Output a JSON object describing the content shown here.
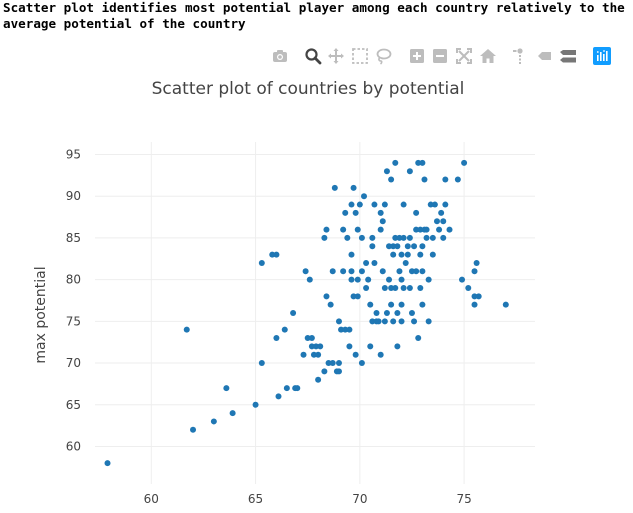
{
  "caption": "Scatter plot identifies most potential player among each country relatively to the average potential of the country",
  "modebar": {
    "buttons": [
      {
        "name": "camera-icon"
      },
      {
        "name": "zoom-icon"
      },
      {
        "name": "pan-icon"
      },
      {
        "name": "box-select-icon"
      },
      {
        "name": "lasso-icon"
      },
      {
        "name": "zoom-in-icon"
      },
      {
        "name": "zoom-out-icon"
      },
      {
        "name": "autoscale-icon"
      },
      {
        "name": "reset-axes-icon"
      },
      {
        "name": "spike-lines-icon"
      },
      {
        "name": "hover-closest-icon"
      },
      {
        "name": "hover-compare-icon"
      },
      {
        "name": "plotly-logo-icon"
      }
    ],
    "active": "zoom-icon",
    "icon_color": "#bdbdbd",
    "active_color": "#444444",
    "logo_color": "#119dff"
  },
  "chart_data": {
    "type": "scatter",
    "title": "Scatter plot of countries by potential",
    "xlabel": "",
    "ylabel": "max potential",
    "xlim": [
      57.3,
      78.4
    ],
    "ylim": [
      55.5,
      96.5
    ],
    "xticks": [
      "60",
      "65",
      "70",
      "75"
    ],
    "yticks": [
      "60",
      "65",
      "70",
      "75",
      "80",
      "85",
      "90",
      "95"
    ],
    "grid": true,
    "marker_color": "#1f77b4",
    "points": [
      [
        57.9,
        58
      ],
      [
        61.7,
        74
      ],
      [
        62.0,
        62
      ],
      [
        63.0,
        63
      ],
      [
        63.6,
        67
      ],
      [
        63.9,
        64
      ],
      [
        65.0,
        65
      ],
      [
        65.3,
        70
      ],
      [
        65.3,
        82
      ],
      [
        65.8,
        83
      ],
      [
        66.0,
        83
      ],
      [
        66.0,
        73
      ],
      [
        66.1,
        66
      ],
      [
        66.4,
        74
      ],
      [
        66.5,
        67
      ],
      [
        66.8,
        76
      ],
      [
        66.9,
        67
      ],
      [
        67.0,
        67
      ],
      [
        67.3,
        71
      ],
      [
        67.4,
        81
      ],
      [
        67.5,
        73
      ],
      [
        67.6,
        80
      ],
      [
        67.7,
        73
      ],
      [
        67.7,
        72
      ],
      [
        67.8,
        71
      ],
      [
        67.9,
        72
      ],
      [
        68.0,
        71
      ],
      [
        68.0,
        68
      ],
      [
        68.1,
        72
      ],
      [
        68.3,
        69
      ],
      [
        68.3,
        85
      ],
      [
        68.4,
        86
      ],
      [
        68.4,
        78
      ],
      [
        68.5,
        70
      ],
      [
        68.6,
        77
      ],
      [
        68.7,
        81
      ],
      [
        68.7,
        70
      ],
      [
        68.8,
        91
      ],
      [
        68.9,
        69
      ],
      [
        69.0,
        75
      ],
      [
        69.0,
        70
      ],
      [
        69.0,
        69
      ],
      [
        69.1,
        74
      ],
      [
        69.2,
        86
      ],
      [
        69.2,
        81
      ],
      [
        69.3,
        88
      ],
      [
        69.3,
        74
      ],
      [
        69.4,
        85
      ],
      [
        69.5,
        72
      ],
      [
        69.5,
        74
      ],
      [
        69.6,
        89
      ],
      [
        69.6,
        83
      ],
      [
        69.6,
        80
      ],
      [
        69.6,
        81
      ],
      [
        69.7,
        91
      ],
      [
        69.7,
        78
      ],
      [
        69.8,
        71
      ],
      [
        69.8,
        88
      ],
      [
        69.9,
        86
      ],
      [
        69.9,
        78
      ],
      [
        69.9,
        80
      ],
      [
        70.0,
        89
      ],
      [
        70.1,
        85
      ],
      [
        70.1,
        81
      ],
      [
        70.1,
        70
      ],
      [
        70.2,
        90
      ],
      [
        70.3,
        79
      ],
      [
        70.3,
        82
      ],
      [
        70.4,
        80
      ],
      [
        70.5,
        72
      ],
      [
        70.5,
        77
      ],
      [
        70.6,
        85
      ],
      [
        70.6,
        75
      ],
      [
        70.6,
        84
      ],
      [
        70.7,
        82
      ],
      [
        70.7,
        89
      ],
      [
        70.8,
        75
      ],
      [
        70.8,
        76
      ],
      [
        70.9,
        75
      ],
      [
        71.0,
        88
      ],
      [
        71.0,
        86
      ],
      [
        71.0,
        71
      ],
      [
        71.1,
        81
      ],
      [
        71.1,
        87
      ],
      [
        71.2,
        89
      ],
      [
        71.2,
        79
      ],
      [
        71.2,
        75
      ],
      [
        71.3,
        76
      ],
      [
        71.3,
        93
      ],
      [
        71.4,
        84
      ],
      [
        71.4,
        80
      ],
      [
        71.5,
        92
      ],
      [
        71.5,
        77
      ],
      [
        71.5,
        79
      ],
      [
        71.6,
        83
      ],
      [
        71.6,
        84
      ],
      [
        71.6,
        75
      ],
      [
        71.7,
        94
      ],
      [
        71.7,
        85
      ],
      [
        71.7,
        79
      ],
      [
        71.8,
        84
      ],
      [
        71.8,
        72
      ],
      [
        71.8,
        76
      ],
      [
        71.9,
        81
      ],
      [
        71.9,
        85
      ],
      [
        72.0,
        83
      ],
      [
        72.0,
        80
      ],
      [
        72.0,
        77
      ],
      [
        72.0,
        75
      ],
      [
        72.1,
        89
      ],
      [
        72.1,
        85
      ],
      [
        72.1,
        79
      ],
      [
        72.2,
        82
      ],
      [
        72.3,
        84
      ],
      [
        72.3,
        83
      ],
      [
        72.4,
        93
      ],
      [
        72.4,
        85
      ],
      [
        72.4,
        79
      ],
      [
        72.5,
        81
      ],
      [
        72.5,
        76
      ],
      [
        72.6,
        75
      ],
      [
        72.6,
        84
      ],
      [
        72.7,
        86
      ],
      [
        72.7,
        81
      ],
      [
        72.7,
        88
      ],
      [
        72.8,
        73
      ],
      [
        72.8,
        94
      ],
      [
        72.9,
        83
      ],
      [
        72.9,
        79
      ],
      [
        72.9,
        86
      ],
      [
        73.0,
        94
      ],
      [
        73.0,
        77
      ],
      [
        73.0,
        84
      ],
      [
        73.0,
        81
      ],
      [
        73.1,
        86
      ],
      [
        73.1,
        92
      ],
      [
        73.2,
        85
      ],
      [
        73.2,
        86
      ],
      [
        73.3,
        80
      ],
      [
        73.3,
        75
      ],
      [
        73.4,
        89
      ],
      [
        73.5,
        83
      ],
      [
        73.5,
        85
      ],
      [
        73.6,
        89
      ],
      [
        73.7,
        87
      ],
      [
        73.8,
        86
      ],
      [
        73.9,
        88
      ],
      [
        74.0,
        85
      ],
      [
        74.0,
        87
      ],
      [
        74.1,
        89
      ],
      [
        74.1,
        92
      ],
      [
        74.3,
        86
      ],
      [
        74.7,
        92
      ],
      [
        75.0,
        94
      ],
      [
        75.5,
        81
      ],
      [
        75.5,
        77
      ],
      [
        75.5,
        78
      ],
      [
        75.6,
        82
      ],
      [
        75.7,
        78
      ],
      [
        77.0,
        77
      ],
      [
        75.2,
        79
      ],
      [
        74.9,
        80
      ]
    ]
  }
}
